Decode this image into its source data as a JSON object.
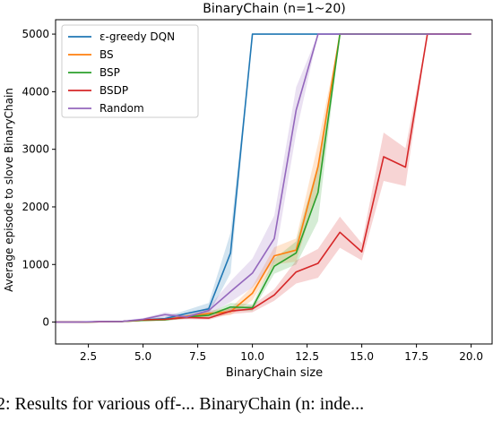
{
  "chart_data": {
    "type": "line",
    "title": "BinaryChain (n=1~20)",
    "xlabel": "BinaryChain size",
    "ylabel": "Average episode to slove BinaryChain",
    "xlim": [
      1,
      21
    ],
    "ylim": [
      -380,
      5250
    ],
    "xticks": [
      "2.5",
      "5.0",
      "7.5",
      "10.0",
      "12.5",
      "15.0",
      "17.5",
      "20.0"
    ],
    "yticks": [
      "0",
      "1000",
      "2000",
      "3000",
      "4000",
      "5000"
    ],
    "legend": "top-left",
    "grid": false,
    "x": [
      1,
      2,
      3,
      4,
      5,
      6,
      7,
      8,
      9,
      10,
      11,
      12,
      13,
      14,
      15,
      16,
      17,
      18,
      19,
      20
    ],
    "series": [
      {
        "name": "ε-greedy DQN",
        "color": "#1f77b4",
        "values": [
          0,
          0,
          5,
          10,
          40,
          60,
          150,
          230,
          1200,
          5000,
          5000,
          5000,
          5000,
          5000,
          5000,
          5000,
          5000,
          5000,
          5000,
          5000
        ],
        "band": [
          0,
          0,
          5,
          10,
          20,
          30,
          60,
          100,
          350,
          0,
          0,
          0,
          0,
          0,
          0,
          0,
          0,
          0,
          0,
          0
        ]
      },
      {
        "name": "BS",
        "color": "#ff7f0e",
        "values": [
          0,
          0,
          5,
          10,
          30,
          40,
          100,
          150,
          180,
          500,
          1150,
          1250,
          2700,
          5000,
          5000,
          5000,
          5000,
          5000,
          5000,
          5000
        ],
        "band": [
          0,
          0,
          5,
          10,
          15,
          20,
          30,
          50,
          60,
          120,
          150,
          200,
          400,
          0,
          0,
          0,
          0,
          0,
          0,
          0
        ]
      },
      {
        "name": "BSP",
        "color": "#2ca02c",
        "values": [
          0,
          0,
          5,
          10,
          30,
          40,
          90,
          120,
          260,
          250,
          970,
          1200,
          2250,
          5000,
          5000,
          5000,
          5000,
          5000,
          5000,
          5000
        ],
        "band": [
          0,
          0,
          5,
          10,
          15,
          20,
          30,
          40,
          70,
          60,
          130,
          200,
          500,
          0,
          0,
          0,
          0,
          0,
          0,
          0
        ]
      },
      {
        "name": "BSDP",
        "color": "#d62728",
        "values": [
          0,
          0,
          5,
          10,
          40,
          50,
          80,
          70,
          190,
          230,
          470,
          870,
          1020,
          1560,
          1220,
          2870,
          2690,
          5000,
          5000,
          5000
        ],
        "band": [
          0,
          0,
          5,
          10,
          15,
          20,
          30,
          30,
          50,
          60,
          100,
          200,
          250,
          270,
          150,
          420,
          330,
          0,
          0,
          0
        ]
      },
      {
        "name": "Random",
        "color": "#9467bd",
        "values": [
          0,
          0,
          10,
          10,
          50,
          130,
          90,
          200,
          530,
          850,
          1450,
          3680,
          5000,
          5000,
          5000,
          5000,
          5000,
          5000,
          5000,
          5000
        ],
        "band": [
          0,
          0,
          5,
          10,
          20,
          40,
          40,
          60,
          180,
          250,
          400,
          400,
          0,
          0,
          0,
          0,
          0,
          0,
          0,
          0
        ]
      }
    ]
  },
  "caption": "2: Results for various off-... BinaryChain (n: inde..."
}
